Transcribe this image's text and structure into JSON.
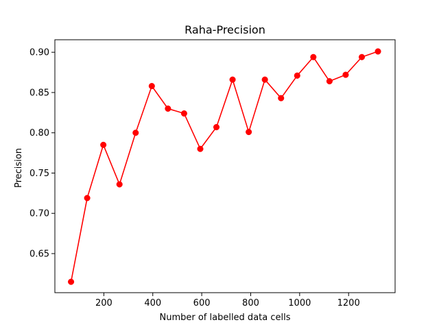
{
  "chart_data": {
    "type": "line",
    "title": "Raha-Precision",
    "xlabel": "Number of labelled data cells",
    "ylabel": "Precision",
    "xlim": [
      0,
      1390
    ],
    "ylim": [
      0.6015,
      0.9155
    ],
    "xticks": [
      200,
      400,
      600,
      800,
      1000,
      1200
    ],
    "yticks": [
      0.65,
      0.7,
      0.75,
      0.8,
      0.85,
      0.9
    ],
    "ytick_labels": [
      "0.65",
      "0.70",
      "0.75",
      "0.80",
      "0.85",
      "0.90"
    ],
    "grid": false,
    "series": [
      {
        "color": "#ff0000",
        "marker": "circle",
        "x": [
          66,
          132,
          198,
          264,
          330,
          396,
          462,
          528,
          594,
          660,
          726,
          792,
          858,
          924,
          990,
          1056,
          1122,
          1188,
          1254,
          1320
        ],
        "y": [
          0.615,
          0.719,
          0.785,
          0.736,
          0.8,
          0.858,
          0.83,
          0.824,
          0.78,
          0.807,
          0.866,
          0.801,
          0.866,
          0.843,
          0.871,
          0.894,
          0.864,
          0.872,
          0.894,
          0.901
        ]
      }
    ]
  }
}
